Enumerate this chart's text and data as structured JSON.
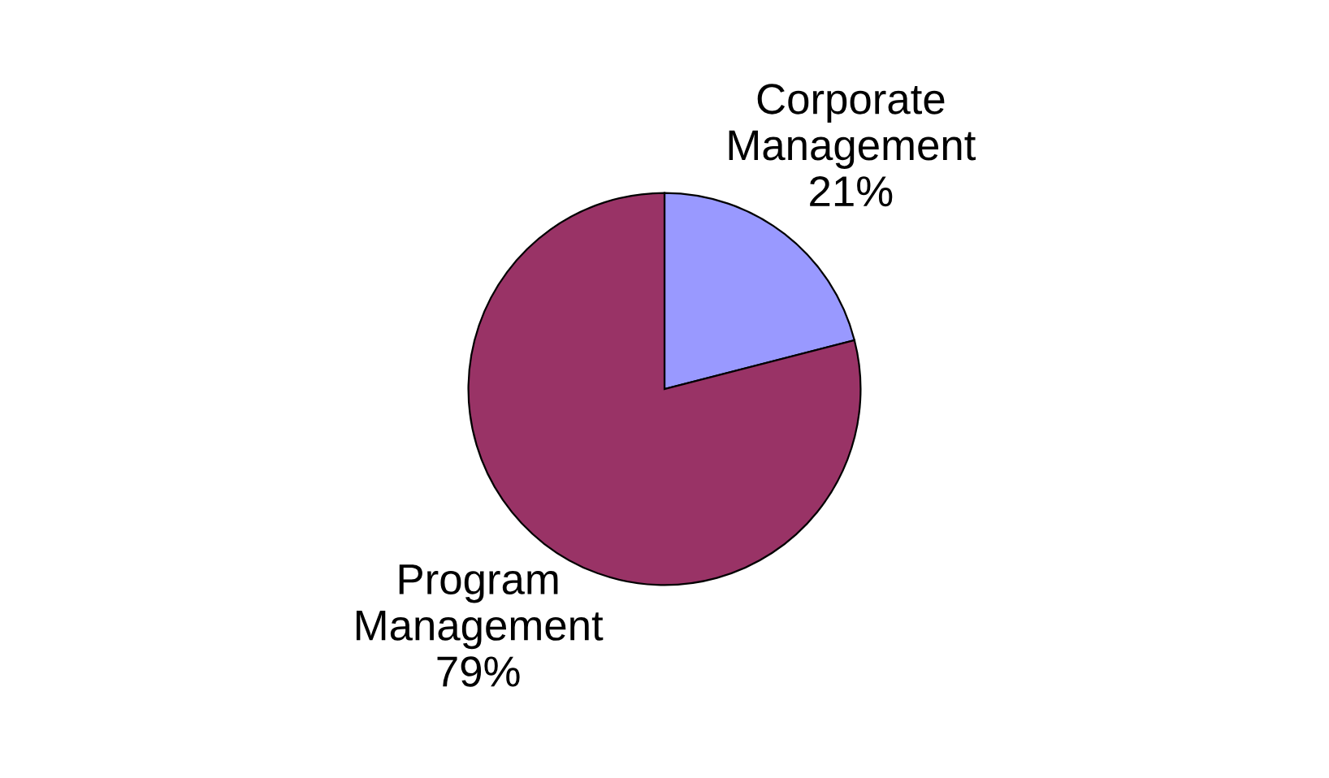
{
  "chart_data": {
    "type": "pie",
    "categories": [
      "Corporate Management",
      "Program Management"
    ],
    "values": [
      21,
      79
    ],
    "value_labels": [
      "21%",
      "79%"
    ],
    "colors": [
      "#9999ff",
      "#993366"
    ]
  }
}
